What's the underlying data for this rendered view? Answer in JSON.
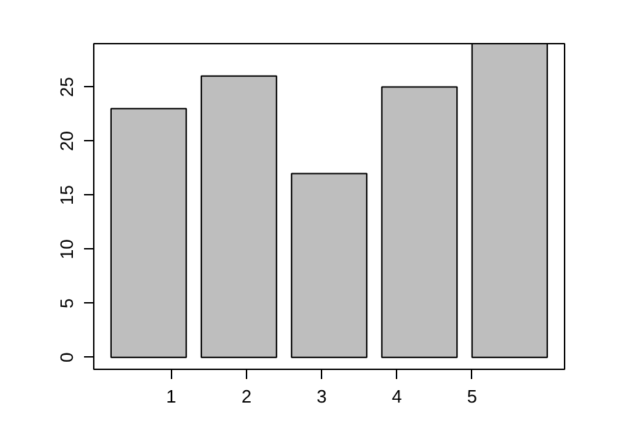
{
  "chart_data": {
    "type": "bar",
    "x": [
      0.7,
      1.9,
      3.1,
      4.3,
      5.5
    ],
    "values": [
      23,
      26,
      17,
      25,
      29
    ],
    "color": "#bebebe",
    "xlim": [
      -0.03,
      6.23
    ],
    "xticks": [
      1,
      2,
      3,
      4,
      5
    ],
    "ylim": [
      -1.1,
      29
    ],
    "yticks": [
      0,
      5,
      10,
      15,
      20,
      25
    ],
    "grid": false
  }
}
